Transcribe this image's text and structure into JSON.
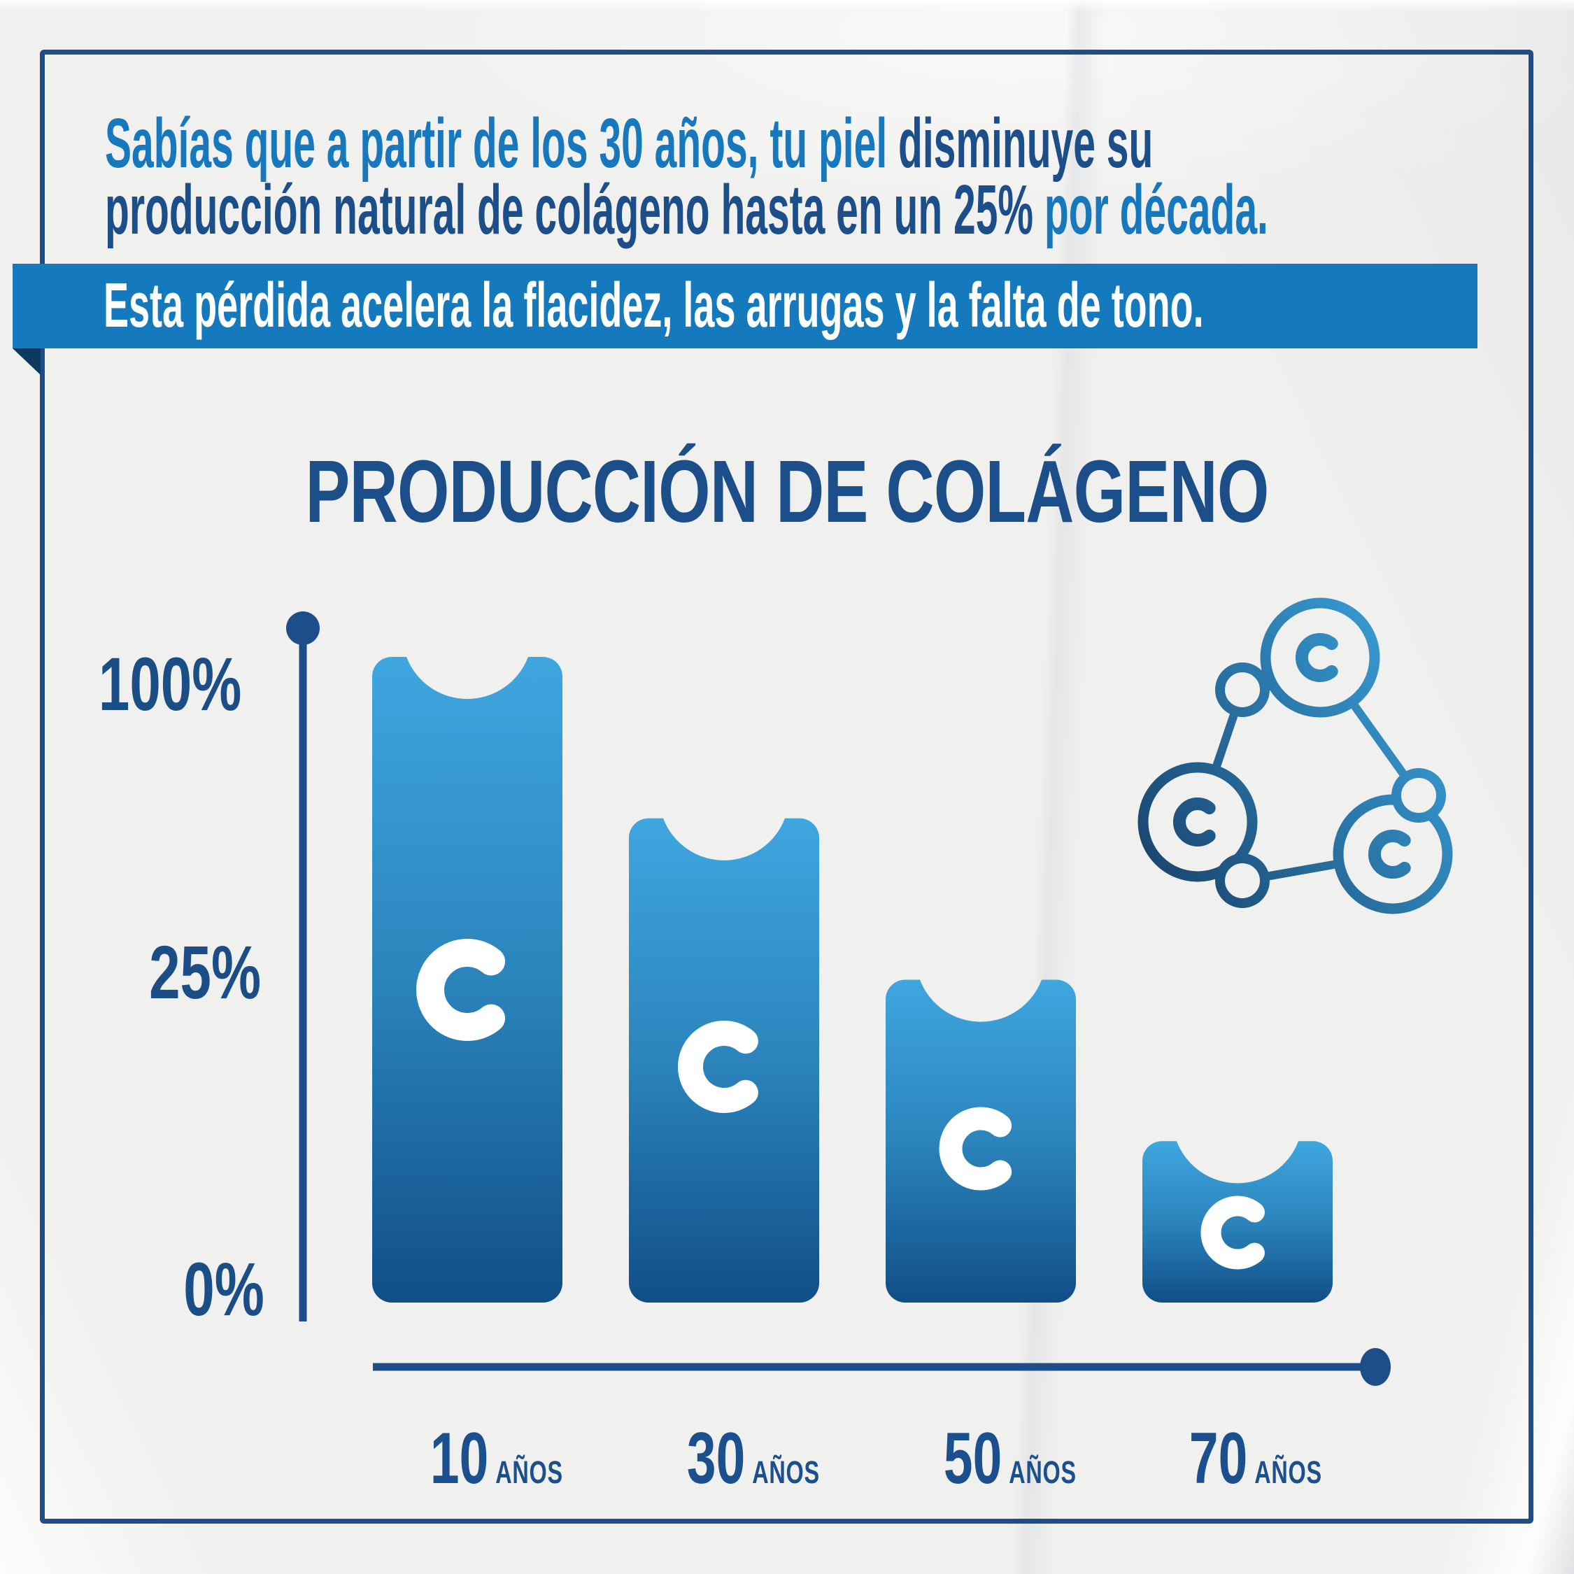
{
  "page": {
    "background_color": "#F0F0EE",
    "frame_color": "#1D4E8A"
  },
  "headline": {
    "line1_light": "Sabías que a partir de los 30 años, tu piel ",
    "line1_dark": "disminuye su",
    "line2_dark": "producción natural de colágeno hasta en un 25% ",
    "line2_light": "por década.",
    "light_color": "#1878BE",
    "dark_color": "#1C4E89"
  },
  "banner": {
    "text": "Esta pérdida acelera la flacidez, las arrugas y la falta de tono.",
    "background_color": "#147ABD",
    "fold_color": "#0E3A5F",
    "text_color": "#FFFFFF"
  },
  "chart_data": {
    "type": "bar",
    "title": "PRODUCCIÓN DE COLÁGENO",
    "title_color": "#1C4E89",
    "categories": [
      "10 años",
      "30 años",
      "50 años",
      "70 años"
    ],
    "values": [
      100,
      75,
      50,
      25
    ],
    "ylim": [
      0,
      100
    ],
    "y_ticks": [
      "100%",
      "25%",
      "0%"
    ],
    "xlabel": "",
    "ylabel": "",
    "grid": false,
    "legend": "none",
    "bar_letter": "C",
    "bar_gradient_top": "#3FA6DF",
    "bar_gradient_mid": "#2B84BC",
    "bar_gradient_bottom": "#114E88",
    "axis_color": "#1D4E8A",
    "bars": [
      {
        "age": "10",
        "unit": "AÑOS",
        "value": 100,
        "letter": "C"
      },
      {
        "age": "30",
        "unit": "AÑOS",
        "value": 75,
        "letter": "C"
      },
      {
        "age": "50",
        "unit": "AÑOS",
        "value": 50,
        "letter": "C"
      },
      {
        "age": "70",
        "unit": "AÑOS",
        "value": 25,
        "letter": "C"
      }
    ]
  },
  "icon": {
    "name": "collagen-molecule",
    "letter": "C",
    "gradient_start": "#1A4670",
    "gradient_end": "#3AA4DE"
  }
}
